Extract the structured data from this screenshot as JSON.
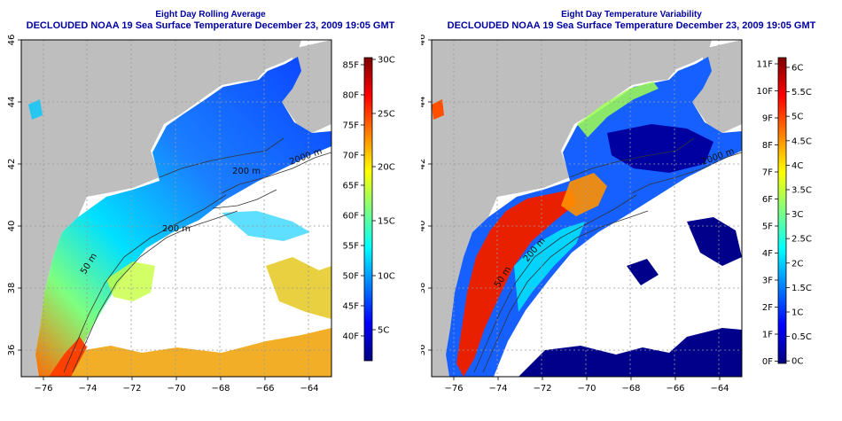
{
  "panels": [
    {
      "title_line1": "Eight Day Rolling Average",
      "title_line2": "DECLOUDED NOAA 19 Sea Surface Temperature December 23, 2009 19:05 GMT",
      "x_ticks": [
        "-76",
        "-74",
        "-72",
        "-70",
        "-68",
        "-66",
        "-64"
      ],
      "y_ticks": [
        "36",
        "38",
        "40",
        "42",
        "44",
        "46"
      ],
      "contours": [
        "50 m",
        "200 m",
        "200 m",
        "2000 m"
      ],
      "colorbar": {
        "left_labels": [
          "85F",
          "80F",
          "75F",
          "70F",
          "65F",
          "60F",
          "55F",
          "50F",
          "45F",
          "40F"
        ],
        "right_labels": [
          "30C",
          "25C",
          "20C",
          "15C",
          "10C",
          "5C"
        ],
        "colors": [
          "#00007f",
          "#0000ff",
          "#007fff",
          "#00ffff",
          "#7fff7f",
          "#ffff00",
          "#ff7f00",
          "#ff0000",
          "#7f0000"
        ]
      }
    },
    {
      "title_line1": "Eight Day Temperature Variability",
      "title_line2": "DECLOUDED NOAA 19 Sea Surface Temperature December 23, 2009 19:05 GMT",
      "x_ticks": [
        "-76",
        "-74",
        "-72",
        "-70",
        "-68",
        "-66",
        "-64"
      ],
      "y_ticks": [
        "36",
        "38",
        "40",
        "42",
        "44",
        "46"
      ],
      "contours": [
        "50 m",
        "200 m",
        "2000 m"
      ],
      "colorbar": {
        "left_labels": [
          "11F",
          "10F",
          "9F",
          "8F",
          "7F",
          "6F",
          "5F",
          "4F",
          "3F",
          "2F",
          "1F",
          "0F"
        ],
        "right_labels": [
          "6C",
          "5.5C",
          "5C",
          "4.5C",
          "4C",
          "3.5C",
          "3C",
          "2.5C",
          "2C",
          "1.5C",
          "1C",
          "0.5C",
          "0C"
        ],
        "colors": [
          "#00007f",
          "#0000ff",
          "#007fff",
          "#00ffff",
          "#7fff7f",
          "#ffff00",
          "#ff7f00",
          "#ff0000",
          "#7f0000"
        ]
      }
    }
  ]
}
